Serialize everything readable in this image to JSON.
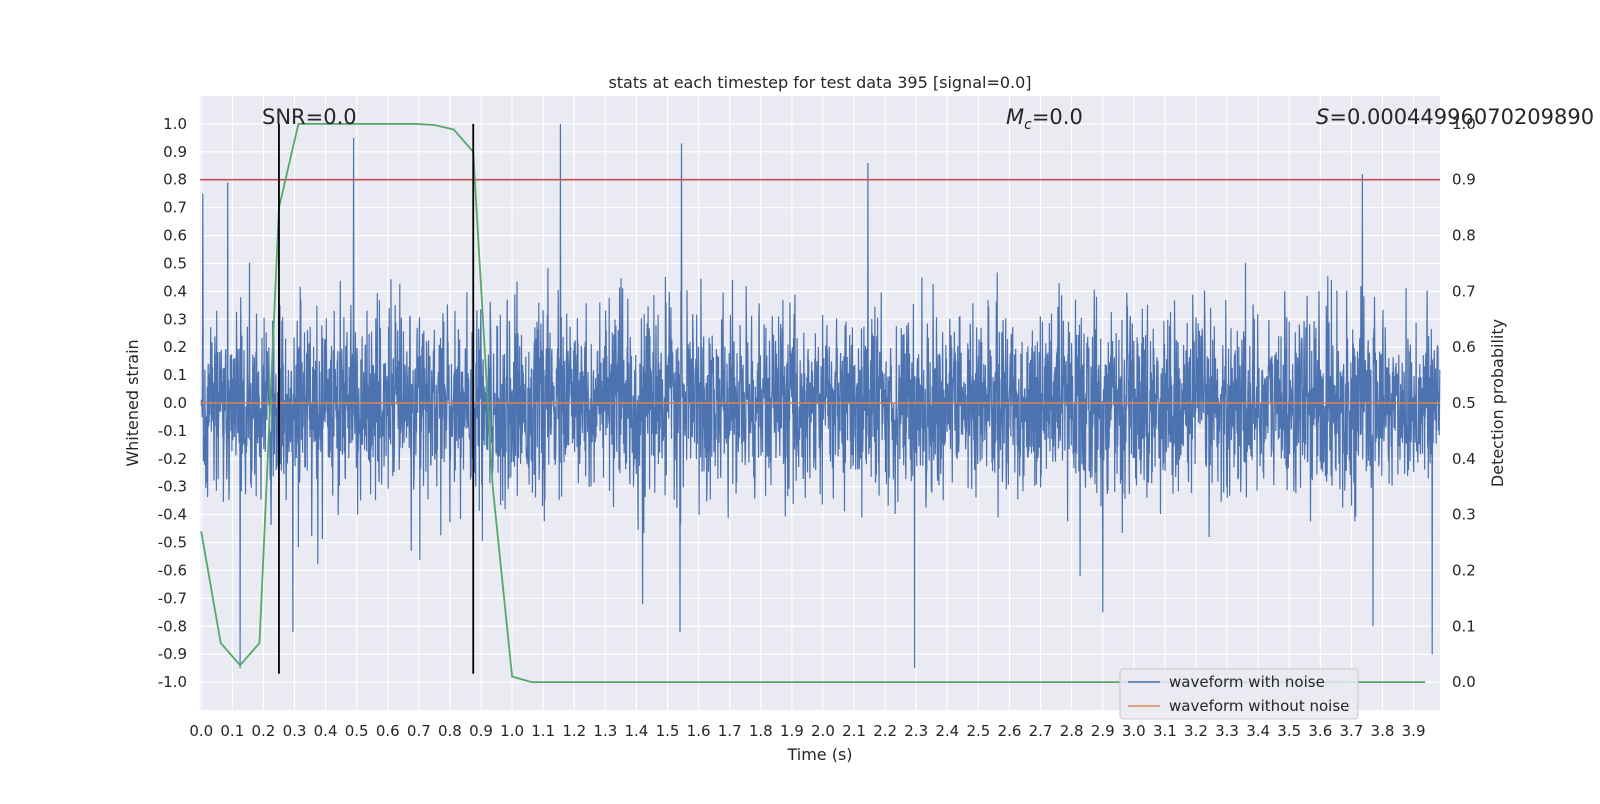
{
  "chart_data": {
    "type": "line",
    "title": "stats at each timestep for test data 395 [signal=0.0]",
    "xlabel": "Time (s)",
    "ylabel_left": "Whitened strain",
    "ylabel_right": "Detection probability",
    "xlim": [
      -0.004,
      3.985
    ],
    "ylim_left": [
      -1.1,
      1.1
    ],
    "ylim_right": [
      -0.05,
      1.05
    ],
    "x_ticks": [
      "0.0",
      "0.1",
      "0.2",
      "0.3",
      "0.4",
      "0.5",
      "0.6",
      "0.7",
      "0.8",
      "0.9",
      "1.0",
      "1.1",
      "1.2",
      "1.3",
      "1.4",
      "1.5",
      "1.6",
      "1.7",
      "1.8",
      "1.9",
      "2.0",
      "2.1",
      "2.2",
      "2.3",
      "2.4",
      "2.5",
      "2.6",
      "2.7",
      "2.8",
      "2.9",
      "3.0",
      "3.1",
      "3.2",
      "3.3",
      "3.4",
      "3.5",
      "3.6",
      "3.7",
      "3.8",
      "3.9"
    ],
    "y_ticks_left": [
      "1.0",
      "0.9",
      "0.8",
      "0.7",
      "0.6",
      "0.5",
      "0.4",
      "0.3",
      "0.2",
      "0.1",
      "0.0",
      "-0.1",
      "-0.2",
      "-0.3",
      "-0.4",
      "-0.5",
      "-0.6",
      "-0.7",
      "-0.8",
      "-0.9",
      "-1.0"
    ],
    "y_ticks_right": [
      "1.0",
      "0.9",
      "0.8",
      "0.7",
      "0.6",
      "0.5",
      "0.4",
      "0.3",
      "0.2",
      "0.1",
      "0.0"
    ],
    "annotations": {
      "snr": "SNR=0.0",
      "mc_symbol": "M",
      "mc_sub": "c",
      "mc_value": "=0.0",
      "s_symbol": "S",
      "s_value": "=0.00044996070209890"
    },
    "series": [
      {
        "name": "waveform with noise",
        "axis": "left",
        "color": "#4c72b0",
        "kind": "dense noise, amplitude mostly within ±0.4 with spikes",
        "duration": 4.0,
        "samples": 4096,
        "peaks": [
          {
            "x": 0.005,
            "y": 0.75
          },
          {
            "x": 0.085,
            "y": 0.79
          },
          {
            "x": 0.125,
            "y": -0.95
          },
          {
            "x": 0.49,
            "y": 0.95
          },
          {
            "x": 0.295,
            "y": -0.82
          },
          {
            "x": 1.155,
            "y": 1.0
          },
          {
            "x": 1.545,
            "y": 0.93
          },
          {
            "x": 1.54,
            "y": -0.82
          },
          {
            "x": 1.42,
            "y": -0.72
          },
          {
            "x": 2.145,
            "y": 0.86
          },
          {
            "x": 2.295,
            "y": -0.95
          },
          {
            "x": 3.735,
            "y": 0.82
          },
          {
            "x": 3.96,
            "y": -0.9
          },
          {
            "x": 2.9,
            "y": -0.75
          },
          {
            "x": 3.77,
            "y": -0.8
          }
        ]
      },
      {
        "name": "waveform without noise",
        "axis": "left",
        "color": "#dd8452",
        "x": [
          0.0,
          3.985
        ],
        "y": [
          0.0,
          0.0
        ]
      },
      {
        "name": "detection probability",
        "axis": "right",
        "color": "#55a868",
        "x": [
          0.0,
          0.0625,
          0.125,
          0.1875,
          0.25,
          0.3125,
          0.375,
          0.4375,
          0.5,
          0.5625,
          0.625,
          0.6875,
          0.75,
          0.8125,
          0.875,
          0.9375,
          1.0,
          1.0625,
          1.125,
          1.5,
          2.0,
          2.5,
          3.0,
          3.5,
          3.9375
        ],
        "y": [
          0.27,
          0.07,
          0.03,
          0.07,
          0.85,
          1.0,
          1.0,
          1.0,
          1.0,
          1.0,
          1.0,
          1.0,
          0.998,
          0.99,
          0.95,
          0.35,
          0.01,
          0.0,
          0.0,
          0.0,
          0.0,
          0.0,
          0.0,
          0.0,
          0.0
        ]
      }
    ],
    "threshold": {
      "axis": "right",
      "value": 0.9,
      "color": "#c44e52"
    },
    "vlines": {
      "x": [
        0.25,
        0.875
      ],
      "color": "#000000",
      "ymin": -0.97,
      "ymax": 1.0
    },
    "legend": {
      "position": "lower-right",
      "entries": [
        {
          "label": "waveform with noise",
          "color": "#4c72b0"
        },
        {
          "label": "waveform without noise",
          "color": "#dd8452"
        }
      ]
    },
    "background": "#eaeaf2",
    "grid": true
  }
}
